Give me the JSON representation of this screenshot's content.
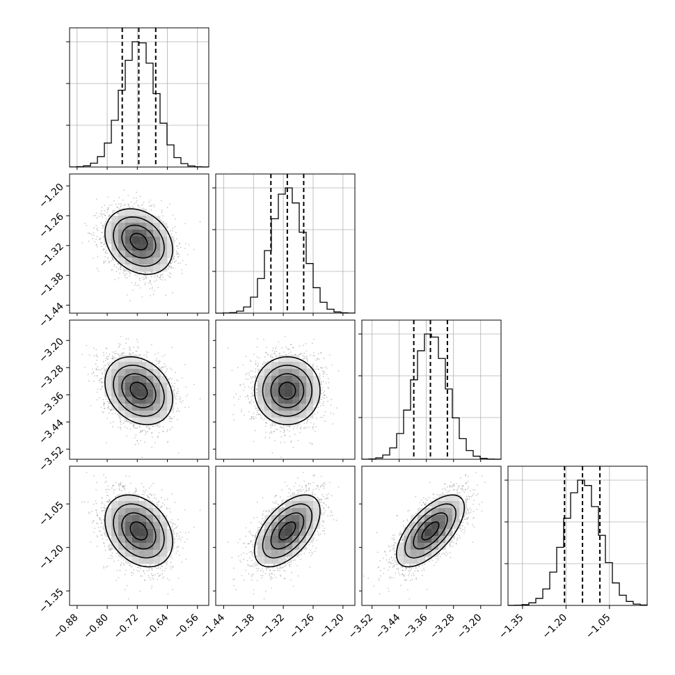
{
  "chart_data": {
    "type": "corner",
    "parameters": [
      {
        "mean": -0.716,
        "sd": 0.045,
        "range": [
          -0.9,
          -0.53
        ],
        "ticks": [
          -0.88,
          -0.8,
          -0.72,
          -0.64,
          -0.56
        ],
        "tick_labels": [
          "−0.88",
          "−0.80",
          "−0.72",
          "−0.64",
          "−0.56"
        ],
        "quantiles": [
          -0.76,
          -0.716,
          -0.671
        ]
      },
      {
        "mean": -1.312,
        "sd": 0.033,
        "range": [
          -1.456,
          -1.176
        ],
        "ticks": [
          -1.44,
          -1.38,
          -1.32,
          -1.26,
          -1.2
        ],
        "tick_labels": [
          "−1.44",
          "−1.38",
          "−1.32",
          "−1.26",
          "−1.20"
        ],
        "quantiles": [
          -1.345,
          -1.312,
          -1.279
        ]
      },
      {
        "mean": -3.348,
        "sd": 0.05,
        "range": [
          -3.55,
          -3.14
        ],
        "ticks": [
          -3.52,
          -3.44,
          -3.36,
          -3.28,
          -3.2
        ],
        "tick_labels": [
          "−3.52",
          "−3.44",
          "−3.36",
          "−3.28",
          "−3.20"
        ],
        "quantiles": [
          -3.397,
          -3.348,
          -3.298
        ]
      },
      {
        "mean": -1.143,
        "sd": 0.062,
        "range": [
          -1.4,
          -0.92
        ],
        "ticks": [
          -1.35,
          -1.2,
          -1.05
        ],
        "tick_labels": [
          "−1.35",
          "−1.20",
          "−1.05"
        ],
        "quantiles": [
          -1.205,
          -1.143,
          -1.083
        ]
      }
    ],
    "correlations": [
      [
        1,
        -0.25,
        -0.25,
        -0.3
      ],
      [
        -0.25,
        1,
        0.0,
        0.55
      ],
      [
        -0.25,
        0.0,
        1,
        0.65
      ],
      [
        -0.3,
        0.55,
        0.65,
        1
      ]
    ],
    "quantile_levels": [
      0.16,
      0.5,
      0.84
    ],
    "histogram_bins": 20,
    "contour_levels_sigma": [
      0.5,
      1.0,
      1.5,
      2.0
    ],
    "xlabels": [
      "",
      "",
      "",
      ""
    ],
    "ylabels": [
      "",
      "",
      "",
      ""
    ],
    "title": "",
    "grid": true,
    "colors": {
      "line": "#000000",
      "points": "#888888",
      "density": "#000000"
    }
  }
}
